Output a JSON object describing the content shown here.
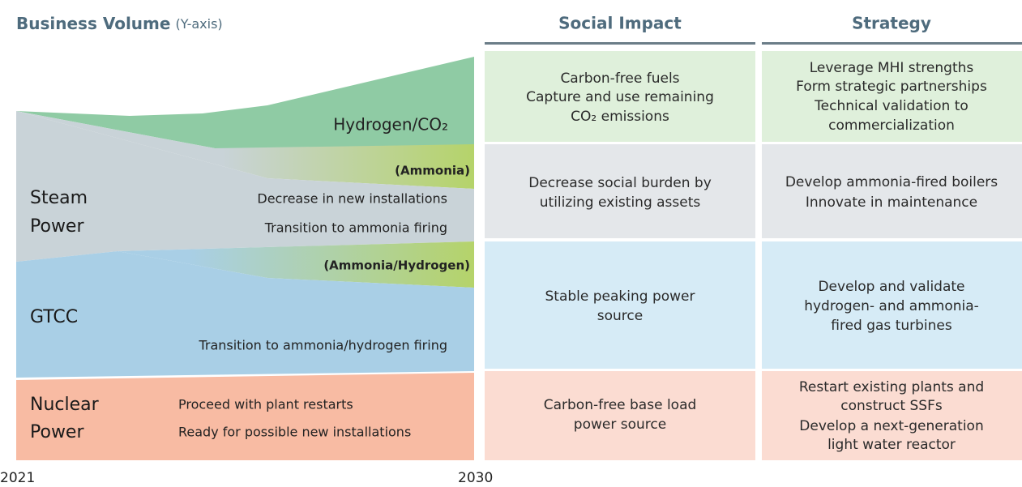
{
  "header": {
    "title": "Business Volume",
    "title_note": "(Y-axis)",
    "columns": [
      "Social Impact",
      "Strategy"
    ]
  },
  "segments": [
    {
      "label": [
        "Hydrogen/CO₂"
      ],
      "notes": []
    },
    {
      "label": [
        "(Ammonia)"
      ],
      "notes": []
    },
    {
      "label": [
        "Steam",
        "Power"
      ],
      "notes": [
        "Decrease in new installations",
        "Transition to ammonia firing"
      ]
    },
    {
      "label": [
        "(Ammonia/Hydrogen)"
      ],
      "notes": []
    },
    {
      "label": [
        "GTCC"
      ],
      "notes": [
        "Transition to ammonia/hydrogen firing"
      ]
    },
    {
      "label": [
        "Nuclear",
        "Power"
      ],
      "notes": [
        "Proceed with plant restarts",
        "Ready for possible new installations"
      ]
    }
  ],
  "rows": [
    {
      "social_impact": [
        "Carbon-free fuels",
        "Capture and use remaining",
        "CO₂ emissions"
      ],
      "strategy": [
        "Leverage MHI strengths",
        "Form strategic partnerships",
        "Technical validation to",
        "commercialization"
      ]
    },
    {
      "social_impact": [
        "Decrease social burden by",
        "utilizing existing assets"
      ],
      "strategy": [
        "Develop ammonia-fired boilers",
        "Innovate in maintenance"
      ]
    },
    {
      "social_impact": [
        "Stable peaking power",
        "source"
      ],
      "strategy": [
        "Develop and validate",
        "hydrogen- and ammonia-",
        "fired gas turbines"
      ]
    },
    {
      "social_impact": [
        "Carbon-free base load",
        "power source"
      ],
      "strategy": [
        "Restart existing plants and",
        "construct SSFs",
        "Develop a next-generation",
        "light water reactor"
      ]
    }
  ],
  "axis": {
    "start": "2021",
    "end": "2030"
  }
}
